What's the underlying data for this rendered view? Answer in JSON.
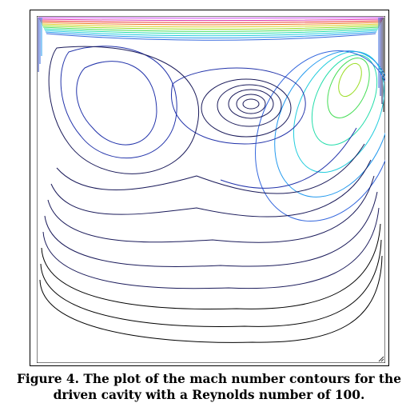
{
  "figure": {
    "caption_line1": "Figure 4. The plot of the mach number contours for the",
    "caption_line2": "driven cavity with a Reynolds number of 100."
  },
  "chart_data": {
    "type": "contour",
    "title": "",
    "xlabel": "",
    "ylabel": "",
    "colormap": [
      "#000000",
      "#1a1a5a",
      "#2233aa",
      "#3366dd",
      "#2299ee",
      "#22ccdd",
      "#22ddaa",
      "#44dd55",
      "#99dd22",
      "#ddcc22",
      "#ee7722",
      "#ee3333",
      "#dd33aa",
      "#cc44ee"
    ],
    "features": [
      "primary vortex near upper right",
      "secondary vortex at center-top",
      "recirculation at upper left",
      "high-gradient band along the driven lid"
    ]
  },
  "icons": {
    "resize_handle": "resize-grip-icon"
  }
}
